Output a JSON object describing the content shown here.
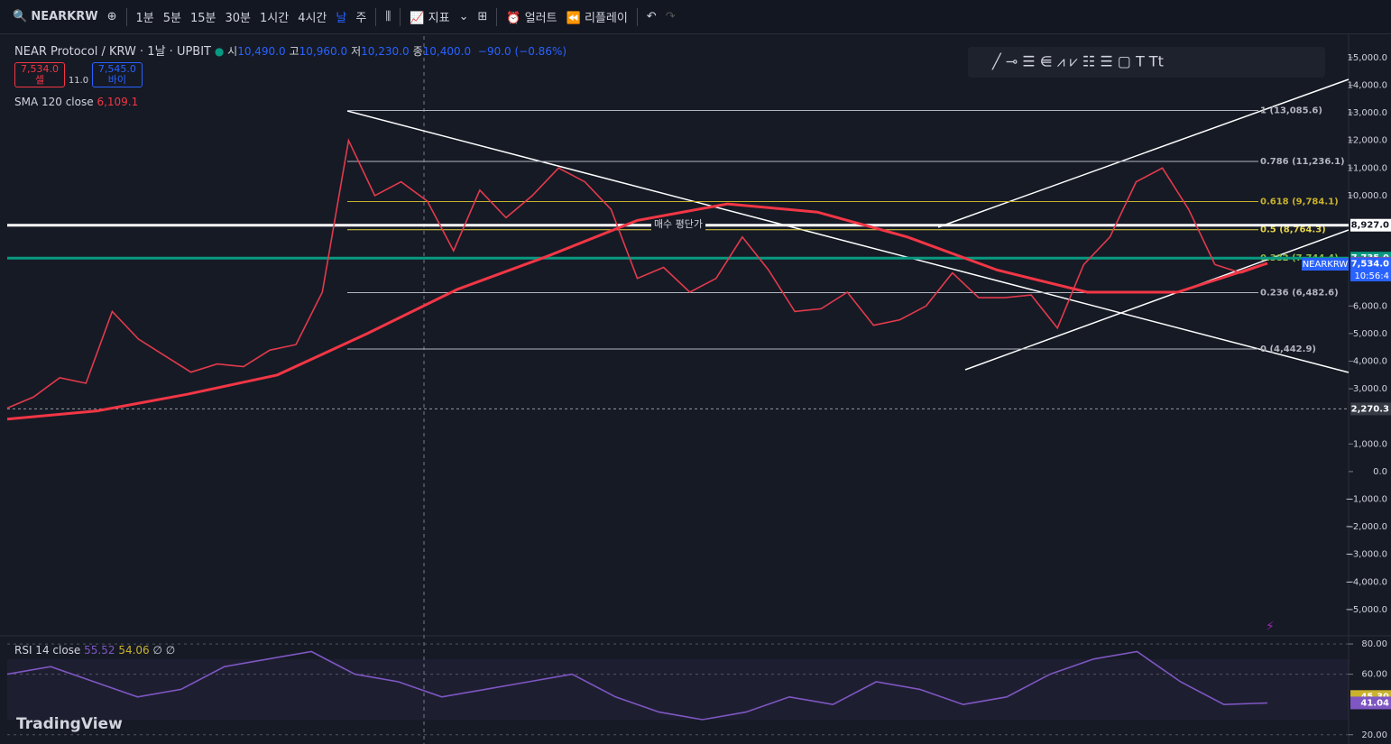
{
  "toolbar": {
    "symbol": "NEARKRW",
    "intervals": [
      "1분",
      "5분",
      "15분",
      "30분",
      "1시간",
      "4시간",
      "날",
      "주"
    ],
    "indicators": "지표",
    "alert": "얼러트",
    "replay": "리플레이"
  },
  "legend": {
    "title": "NEAR Protocol / KRW · 1날 · UPBIT",
    "ohlc": [
      {
        "key": "시",
        "value": "10,490.0"
      },
      {
        "key": "고",
        "value": "10,960.0"
      },
      {
        "key": "저",
        "value": "10,230.0"
      },
      {
        "key": "종",
        "value": "10,400.0"
      }
    ],
    "change": "−90.0 (−0.86%)",
    "sell": {
      "price": "7,534.0",
      "label": "셀"
    },
    "spread": "11.0",
    "buy": {
      "price": "7,545.0",
      "label": "바이"
    },
    "sma": {
      "name": "SMA 120 close",
      "value": "6,109.1"
    },
    "rsi": {
      "name": "RSI 14 close",
      "value": "55.52",
      "ma": "54.06"
    }
  },
  "annotation": "매수 평단가",
  "watermark": "TradingView",
  "symbol_tag": "NEARKRW",
  "countdown": "10:56:4",
  "chart_data": [
    {
      "type": "line",
      "ylim": [
        -5950,
        15780
      ],
      "yticks": [
        {
          "value": 15000,
          "label": "15,000.0"
        },
        {
          "value": 14000,
          "label": "14,000.0"
        },
        {
          "value": 13000,
          "label": "13,000.0"
        },
        {
          "value": 12000,
          "label": "12,000.0"
        },
        {
          "value": 11000,
          "label": "11,000.0"
        },
        {
          "value": 10000,
          "label": "10,000.0"
        },
        {
          "value": 6000,
          "label": "6,000.0"
        },
        {
          "value": 5000,
          "label": "5,000.0"
        },
        {
          "value": 4000,
          "label": "4,000.0"
        },
        {
          "value": 3000,
          "label": "3,000.0"
        },
        {
          "value": 1000,
          "label": "1,000.0"
        },
        {
          "value": 0,
          "label": "0.0"
        },
        {
          "value": -1000,
          "label": "−1,000.0"
        },
        {
          "value": -2000,
          "label": "−2,000.0"
        },
        {
          "value": -3000,
          "label": "−3,000.0"
        },
        {
          "value": -4000,
          "label": "−4,000.0"
        },
        {
          "value": -5000,
          "label": "−5,000.0"
        }
      ],
      "series": [
        {
          "name": "NEARKRW",
          "color": "#e23a4c",
          "values": [
            2300,
            2700,
            3400,
            3200,
            5800,
            4800,
            4200,
            3600,
            3900,
            3800,
            4400,
            4600,
            6500,
            12000,
            10000,
            10500,
            9800,
            8000,
            10200,
            9200,
            10000,
            11000,
            10500,
            9500,
            7000,
            7400,
            6500,
            7000,
            8500,
            7300,
            5800,
            5900,
            6500,
            5300,
            5500,
            6000,
            7200,
            6300,
            6300,
            6400,
            5200,
            7500,
            8500,
            10500,
            11000,
            9500,
            7500,
            7200,
            7534
          ]
        },
        {
          "name": "SMA 120 close",
          "color": "#f23645",
          "values": [
            1900,
            2200,
            2800,
            3500,
            5000,
            6600,
            7800,
            9100,
            9700,
            9400,
            8500,
            7300,
            6500,
            6500,
            7549
          ]
        }
      ],
      "levels": [
        {
          "label": "1 (13,085.6)",
          "value": 13085.6,
          "color": "#b2b5be"
        },
        {
          "label": "0.786 (11,236.1)",
          "value": 11236.1,
          "color": "#b2b5be"
        },
        {
          "label": "0.618 (9,784.1)",
          "value": 9784.1,
          "color": "#c9b22c"
        },
        {
          "label": "0.5 (8,764.3)",
          "value": 8764.3,
          "color": "#e6d54a"
        },
        {
          "label": "0.382 (7,744.4)",
          "value": 7744.4,
          "color": "#8bc34a"
        },
        {
          "label": "0.236 (6,482.6)",
          "value": 6482.6,
          "color": "#b2b5be"
        },
        {
          "label": "0 (4,442.9)",
          "value": 4442.9,
          "color": "#b2b5be"
        }
      ],
      "price_tags": [
        {
          "value": 8927,
          "label": "8,927.0",
          "color": "#ffffff"
        },
        {
          "value": 7735,
          "label": "7,735.0",
          "color": "#089981"
        },
        {
          "value": 7549.1,
          "label": "7,549.1",
          "color": "#f23645"
        },
        {
          "value": 7534,
          "label": "7,534.0",
          "color": "#2962ff"
        },
        {
          "value": 2270.3,
          "label": "2,270.3",
          "color": "#363a45"
        }
      ]
    },
    {
      "type": "line",
      "ylim": [
        13.9,
        85.4
      ],
      "yticks": [
        {
          "value": 80,
          "label": "80.00"
        },
        {
          "value": 60,
          "label": "60.00"
        },
        {
          "value": 20,
          "label": "20.00"
        }
      ],
      "series": [
        {
          "name": "RSI 14 close",
          "color": "#7e57c2",
          "values": [
            60,
            65,
            55,
            45,
            50,
            65,
            70,
            75,
            60,
            55,
            45,
            50,
            55,
            60,
            45,
            35,
            30,
            35,
            45,
            40,
            55,
            50,
            40,
            45,
            60,
            70,
            75,
            55,
            40,
            41.04
          ]
        }
      ],
      "price_tags": [
        {
          "value": 45.3,
          "label": "45.30",
          "color": "#c9b22c"
        },
        {
          "value": 41.04,
          "label": "41.04",
          "color": "#7e57c2"
        }
      ]
    }
  ]
}
